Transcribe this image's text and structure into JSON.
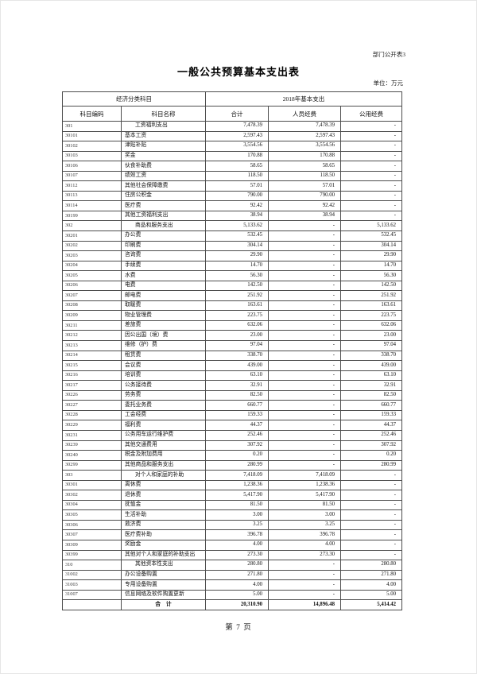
{
  "page": {
    "corner_label": "部门公开表3",
    "title": "一般公共预算基本支出表",
    "unit_label": "单位：万元",
    "footer": "第 7 页"
  },
  "table": {
    "header": {
      "group_left": "经济分类科目",
      "group_right": "2018年基本支出",
      "columns": [
        "科目编码",
        "科目名称",
        "合计",
        "人员经费",
        "公用经费"
      ]
    },
    "rows": [
      {
        "code": "301",
        "name": "工资福利支出",
        "total": "7,478.39",
        "personnel": "7,478.39",
        "public": "-",
        "parent": true
      },
      {
        "code": "30101",
        "name": "基本工资",
        "total": "2,597.43",
        "personnel": "2,597.43",
        "public": "-",
        "parent": false
      },
      {
        "code": "30102",
        "name": "津贴补贴",
        "total": "3,554.56",
        "personnel": "3,554.56",
        "public": "-",
        "parent": false
      },
      {
        "code": "30103",
        "name": "奖金",
        "total": "170.88",
        "personnel": "170.88",
        "public": "-",
        "parent": false
      },
      {
        "code": "30106",
        "name": "伙食补助费",
        "total": "58.65",
        "personnel": "58.65",
        "public": "-",
        "parent": false
      },
      {
        "code": "30107",
        "name": "绩效工资",
        "total": "118.50",
        "personnel": "118.50",
        "public": "-",
        "parent": false
      },
      {
        "code": "30112",
        "name": "其他社会保障缴费",
        "total": "57.01",
        "personnel": "57.01",
        "public": "-",
        "parent": false
      },
      {
        "code": "30113",
        "name": "住房公积金",
        "total": "790.00",
        "personnel": "790.00",
        "public": "-",
        "parent": false
      },
      {
        "code": "30114",
        "name": "医疗费",
        "total": "92.42",
        "personnel": "92.42",
        "public": "-",
        "parent": false
      },
      {
        "code": "30199",
        "name": "其他工资福利支出",
        "total": "38.94",
        "personnel": "38.94",
        "public": "-",
        "parent": false
      },
      {
        "code": "302",
        "name": "商品和服务支出",
        "total": "5,133.62",
        "personnel": "-",
        "public": "5,133.62",
        "parent": true
      },
      {
        "code": "30201",
        "name": "办公费",
        "total": "532.45",
        "personnel": "-",
        "public": "532.45",
        "parent": false
      },
      {
        "code": "30202",
        "name": "印刷费",
        "total": "304.14",
        "personnel": "-",
        "public": "304.14",
        "parent": false
      },
      {
        "code": "30203",
        "name": "咨询费",
        "total": "29.90",
        "personnel": "-",
        "public": "29.90",
        "parent": false
      },
      {
        "code": "30204",
        "name": "手续费",
        "total": "14.70",
        "personnel": "-",
        "public": "14.70",
        "parent": false
      },
      {
        "code": "30205",
        "name": "水费",
        "total": "56.30",
        "personnel": "-",
        "public": "56.30",
        "parent": false
      },
      {
        "code": "30206",
        "name": "电费",
        "total": "142.50",
        "personnel": "-",
        "public": "142.50",
        "parent": false
      },
      {
        "code": "30207",
        "name": "邮电费",
        "total": "251.92",
        "personnel": "-",
        "public": "251.92",
        "parent": false
      },
      {
        "code": "30208",
        "name": "取暖费",
        "total": "163.61",
        "personnel": "-",
        "public": "163.61",
        "parent": false
      },
      {
        "code": "30209",
        "name": "物业管理费",
        "total": "223.75",
        "personnel": "-",
        "public": "223.75",
        "parent": false
      },
      {
        "code": "30211",
        "name": "差旅费",
        "total": "632.06",
        "personnel": "-",
        "public": "632.06",
        "parent": false
      },
      {
        "code": "30212",
        "name": "因公出国（境）费",
        "total": "23.00",
        "personnel": "-",
        "public": "23.00",
        "parent": false
      },
      {
        "code": "30213",
        "name": "维修（护）费",
        "total": "97.04",
        "personnel": "-",
        "public": "97.04",
        "parent": false
      },
      {
        "code": "30214",
        "name": "租赁费",
        "total": "338.70",
        "personnel": "-",
        "public": "338.70",
        "parent": false
      },
      {
        "code": "30215",
        "name": "会议费",
        "total": "439.00",
        "personnel": "-",
        "public": "439.00",
        "parent": false
      },
      {
        "code": "30216",
        "name": "培训费",
        "total": "63.10",
        "personnel": "-",
        "public": "63.10",
        "parent": false
      },
      {
        "code": "30217",
        "name": "公务接待费",
        "total": "32.91",
        "personnel": "-",
        "public": "32.91",
        "parent": false
      },
      {
        "code": "30226",
        "name": "劳务费",
        "total": "82.50",
        "personnel": "-",
        "public": "82.50",
        "parent": false
      },
      {
        "code": "30227",
        "name": "委托业务费",
        "total": "660.77",
        "personnel": "-",
        "public": "660.77",
        "parent": false
      },
      {
        "code": "30228",
        "name": "工会经费",
        "total": "159.33",
        "personnel": "-",
        "public": "159.33",
        "parent": false
      },
      {
        "code": "30229",
        "name": "福利费",
        "total": "44.37",
        "personnel": "-",
        "public": "44.37",
        "parent": false
      },
      {
        "code": "30231",
        "name": "公务用车运行维护费",
        "total": "252.46",
        "personnel": "-",
        "public": "252.46",
        "parent": false
      },
      {
        "code": "30239",
        "name": "其他交通费用",
        "total": "307.92",
        "personnel": "-",
        "public": "307.92",
        "parent": false
      },
      {
        "code": "30240",
        "name": "税金及附加费用",
        "total": "0.20",
        "personnel": "-",
        "public": "0.20",
        "parent": false
      },
      {
        "code": "30299",
        "name": "其他商品和服务支出",
        "total": "280.99",
        "personnel": "-",
        "public": "280.99",
        "parent": false
      },
      {
        "code": "303",
        "name": "对个人和家庭的补助",
        "total": "7,418.09",
        "personnel": "7,418.09",
        "public": "-",
        "parent": true
      },
      {
        "code": "30301",
        "name": "离休费",
        "total": "1,238.36",
        "personnel": "1,238.36",
        "public": "-",
        "parent": false
      },
      {
        "code": "30302",
        "name": "退休费",
        "total": "5,417.90",
        "personnel": "5,417.90",
        "public": "-",
        "parent": false
      },
      {
        "code": "30304",
        "name": "抚恤金",
        "total": "81.50",
        "personnel": "81.50",
        "public": "-",
        "parent": false
      },
      {
        "code": "30305",
        "name": "生活补助",
        "total": "3.00",
        "personnel": "3.00",
        "public": "-",
        "parent": false
      },
      {
        "code": "30306",
        "name": "救济费",
        "total": "3.25",
        "personnel": "3.25",
        "public": "-",
        "parent": false
      },
      {
        "code": "30307",
        "name": "医疗费补助",
        "total": "396.78",
        "personnel": "396.78",
        "public": "-",
        "parent": false
      },
      {
        "code": "30309",
        "name": "奖励金",
        "total": "4.00",
        "personnel": "4.00",
        "public": "-",
        "parent": false
      },
      {
        "code": "30399",
        "name": "其他对个人和家庭的补助支出",
        "total": "273.30",
        "personnel": "273.30",
        "public": "-",
        "parent": false
      },
      {
        "code": "310",
        "name": "其他资本性支出",
        "total": "280.80",
        "personnel": "-",
        "public": "280.80",
        "parent": true
      },
      {
        "code": "31002",
        "name": "办公设备购置",
        "total": "271.80",
        "personnel": "-",
        "public": "271.80",
        "parent": false
      },
      {
        "code": "31003",
        "name": "专用设备购置",
        "total": "4.00",
        "personnel": "-",
        "public": "4.00",
        "parent": false
      },
      {
        "code": "31007",
        "name": "信息网络及软件购置更新",
        "total": "5.00",
        "personnel": "-",
        "public": "5.00",
        "parent": false
      }
    ],
    "total_row": {
      "label": "合　计",
      "total": "20,310.90",
      "personnel": "14,896.48",
      "public": "5,414.42"
    }
  }
}
